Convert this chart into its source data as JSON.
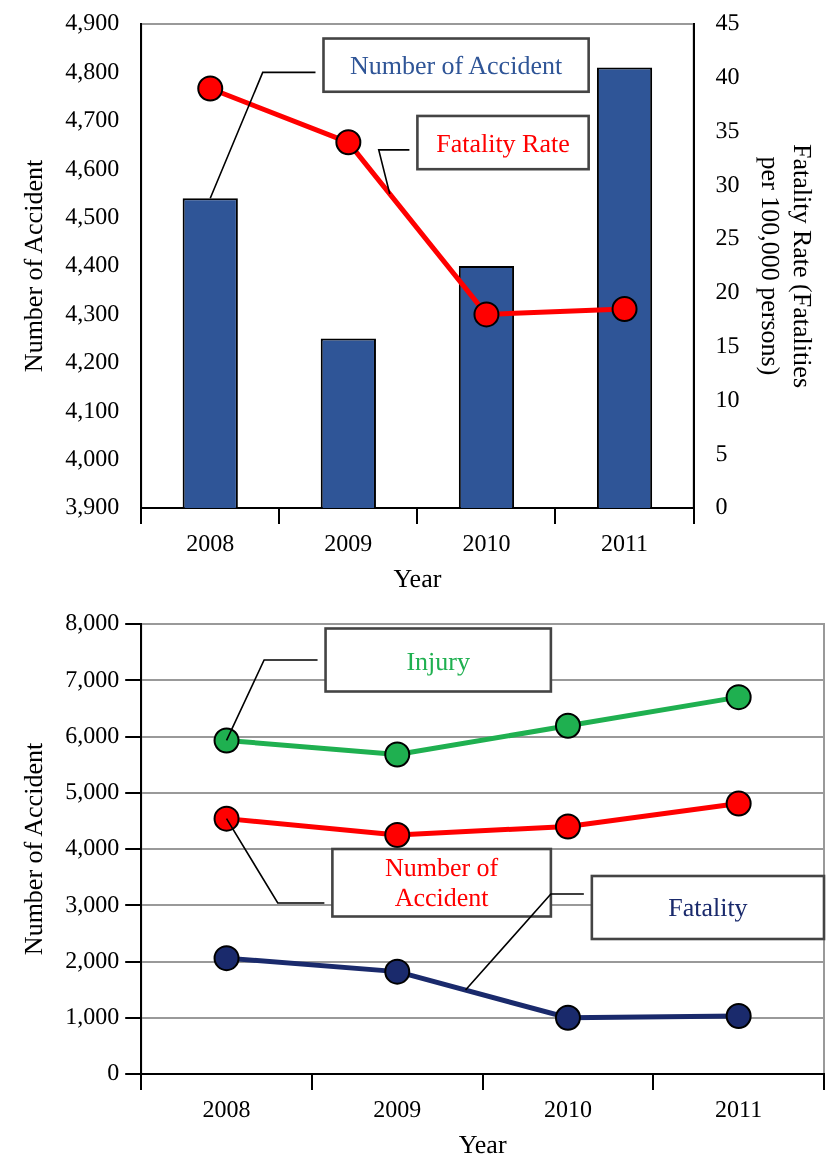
{
  "chart_data": [
    {
      "type": "bar",
      "categories": [
        "2008",
        "2009",
        "2010",
        "2011"
      ],
      "xlabel": "Year",
      "ylabel": "Number of Accident",
      "y2label": "Fatality Rate (Fatalities per 100,000 persons)",
      "series": [
        {
          "name": "Number of Accident",
          "type": "bar",
          "color": "#2f5597",
          "values": [
            4540,
            4250,
            4400,
            4810
          ]
        },
        {
          "name": "Fatality Rate",
          "type": "line",
          "axis": "y2",
          "color": "#ff0000",
          "values": [
            39,
            34,
            18,
            18.5
          ]
        }
      ],
      "ylim": [
        3900,
        4900
      ],
      "yticks": [
        {
          "value": 3900,
          "label": "3,900"
        },
        {
          "value": 4000,
          "label": "4,000"
        },
        {
          "value": 4100,
          "label": "4,100"
        },
        {
          "value": 4200,
          "label": "4,200"
        },
        {
          "value": 4300,
          "label": "4,300"
        },
        {
          "value": 4400,
          "label": "4,400"
        },
        {
          "value": 4500,
          "label": "4,500"
        },
        {
          "value": 4600,
          "label": "4,600"
        },
        {
          "value": 4700,
          "label": "4,700"
        },
        {
          "value": 4800,
          "label": "4,800"
        },
        {
          "value": 4900,
          "label": "4,900"
        }
      ],
      "y2lim": [
        0,
        45
      ],
      "y2ticks": [
        0,
        5,
        10,
        15,
        20,
        25,
        30,
        35,
        40,
        45
      ],
      "marker": "circle",
      "grid": false,
      "legend": false
    },
    {
      "type": "line",
      "categories": [
        "2008",
        "2009",
        "2010",
        "2011"
      ],
      "xlabel": "Year",
      "ylabel": "Number of Accident",
      "series": [
        {
          "name": "Injury",
          "color": "#1fb050",
          "values": [
            5930,
            5680,
            6190,
            6700
          ]
        },
        {
          "name": "Number of Accident",
          "color": "#ff0000",
          "values": [
            4540,
            4250,
            4400,
            4810
          ]
        },
        {
          "name": "Fatality",
          "color": "#1a2a6c",
          "values": [
            2060,
            1820,
            1000,
            1030
          ]
        }
      ],
      "ylim": [
        0,
        8000
      ],
      "yticks": [
        0,
        {
          "value": 1000,
          "label": "1,000"
        },
        {
          "value": 2000,
          "label": "2,000"
        },
        {
          "value": 3000,
          "label": "3,000"
        },
        {
          "value": 4000,
          "label": "4,000"
        },
        {
          "value": 5000,
          "label": "5,000"
        },
        {
          "value": 6000,
          "label": "6,000"
        },
        {
          "value": 7000,
          "label": "7,000"
        },
        {
          "value": 8000,
          "label": "8,000"
        }
      ],
      "marker": "circle",
      "grid": "y",
      "legend": false
    }
  ]
}
